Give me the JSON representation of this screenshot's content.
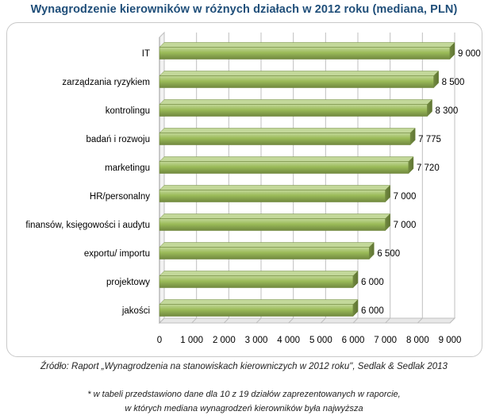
{
  "title": "Wynagrodzenie kierowników w różnych działach w 2012 roku (mediana, PLN)",
  "source": "Źródło: Raport „Wynagrodzenia na stanowiskach kierowniczych w 2012 roku\", Sedlak & Sedlak 2013",
  "note_line1": "* w tabeli przedstawiono dane dla 10 z 19 działów zaprezentowanych w raporcie,",
  "note_line2": "w których mediana wynagrodzeń kierowników była najwyższa",
  "colors": {
    "bar": "#9bbb59",
    "bar_dark": "#71893f",
    "bar_light": "#c3d89a",
    "grid": "#bfbfbf"
  },
  "chart_data": {
    "type": "bar",
    "orientation": "horizontal",
    "categories": [
      "IT",
      "zarządzania ryzykiem",
      "kontrolingu",
      "badań i rozwoju",
      "marketingu",
      "HR/personalny",
      "finansów, księgowości i audytu",
      "exportu/ importu",
      "projektowy",
      "jakości"
    ],
    "values": [
      9000,
      8500,
      8300,
      7775,
      7720,
      7000,
      7000,
      6500,
      6000,
      6000
    ],
    "value_labels": [
      "9 000",
      "8 500",
      "8 300",
      "7 775",
      "7 720",
      "7 000",
      "7 000",
      "6 500",
      "6 000",
      "6 000"
    ],
    "x_ticks": [
      "0",
      "1 000",
      "2 000",
      "3 000",
      "4 000",
      "5 000",
      "6 000",
      "7 000",
      "8 000",
      "9 000"
    ],
    "xlim": [
      0,
      9000
    ],
    "grid": true,
    "legend": false
  }
}
